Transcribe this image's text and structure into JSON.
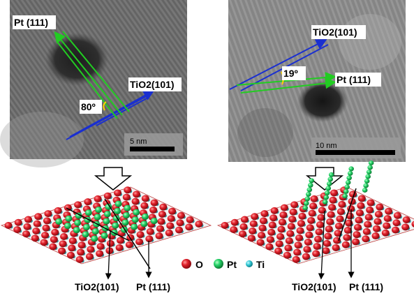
{
  "left_panel": {
    "label_pt": "Pt (111)",
    "label_tio2": "TiO2(101)",
    "angle": "80º",
    "scalebar": "5 nm"
  },
  "right_panel": {
    "label_tio2": "TiO2(101)",
    "label_pt": "Pt (111)",
    "angle": "19º",
    "scalebar": "10 nm"
  },
  "legend": {
    "o": "O",
    "pt": "Pt",
    "ti": "Ti"
  },
  "bottom_left": {
    "tio2": "TiO2(101)",
    "pt": "Pt (111)"
  },
  "bottom_right": {
    "tio2": "TiO2(101)",
    "pt": "Pt (111)"
  },
  "colors": {
    "oxygen": "#e0202a",
    "platinum": "#27d46a",
    "titanium": "#33c9d6",
    "blue_lines": "#1a2fd0",
    "green_lines": "#22cc22"
  }
}
